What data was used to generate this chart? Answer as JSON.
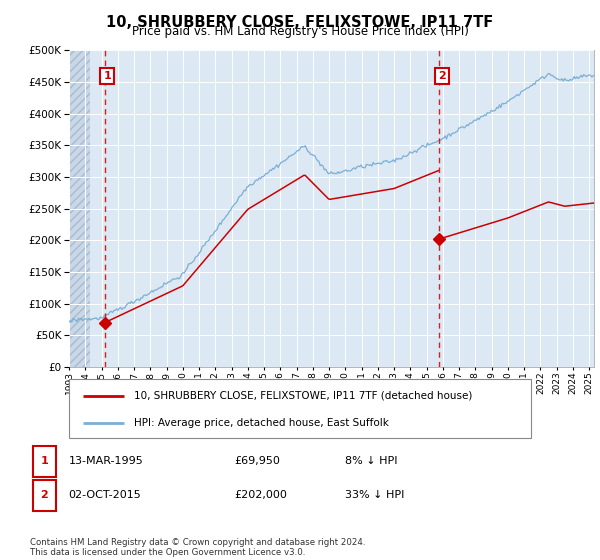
{
  "title": "10, SHRUBBERY CLOSE, FELIXSTOWE, IP11 7TF",
  "subtitle": "Price paid vs. HM Land Registry's House Price Index (HPI)",
  "hpi_label": "HPI: Average price, detached house, East Suffolk",
  "price_label": "10, SHRUBBERY CLOSE, FELIXSTOWE, IP11 7TF (detached house)",
  "footer": "Contains HM Land Registry data © Crown copyright and database right 2024.\nThis data is licensed under the Open Government Licence v3.0.",
  "hpi_color": "#7bafd4",
  "price_color": "#cc0000",
  "annotation_box_color": "#cc0000",
  "background_plot": "#dce9f5",
  "ylim": [
    0,
    500000
  ],
  "yticks": [
    0,
    50000,
    100000,
    150000,
    200000,
    250000,
    300000,
    350000,
    400000,
    450000,
    500000
  ],
  "sale1_year": 1995.21,
  "sale1_price": 69950,
  "sale2_year": 2015.75,
  "sale2_price": 202000,
  "xmin": 1993,
  "xmax": 2025.3
}
